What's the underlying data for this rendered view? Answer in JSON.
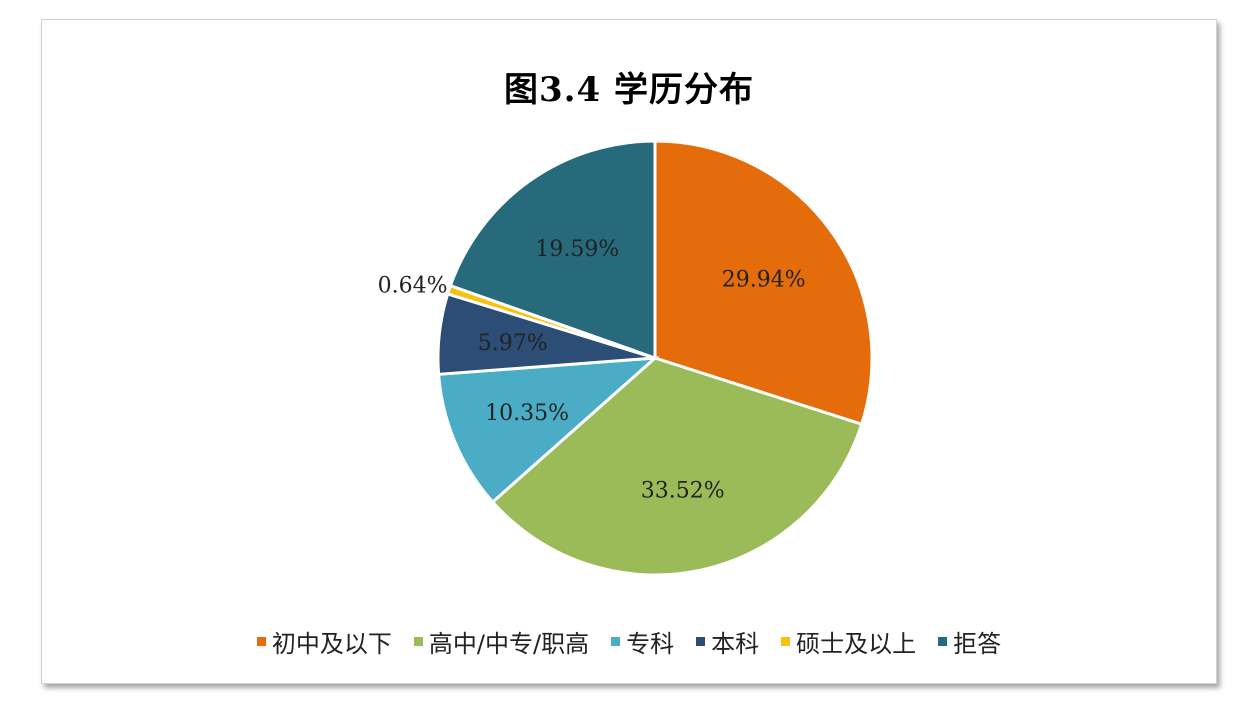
{
  "chart_data": {
    "type": "pie",
    "title": "图3.4 学历分布",
    "categories": [
      "初中及以下",
      "高中/中专/职高",
      "专科",
      "本科",
      "硕士及以上",
      "拒答"
    ],
    "values": [
      29.94,
      33.52,
      10.35,
      5.97,
      0.64,
      19.59
    ],
    "labels": [
      "29.94%",
      "33.52%",
      "10.35%",
      "5.97%",
      "0.64%",
      "19.59%"
    ],
    "colors": [
      "#E46C0A",
      "#9BBB59",
      "#4BACC6",
      "#2C4D75",
      "#F9C00F",
      "#276A7C"
    ],
    "legend_position": "bottom",
    "unit": "%"
  }
}
